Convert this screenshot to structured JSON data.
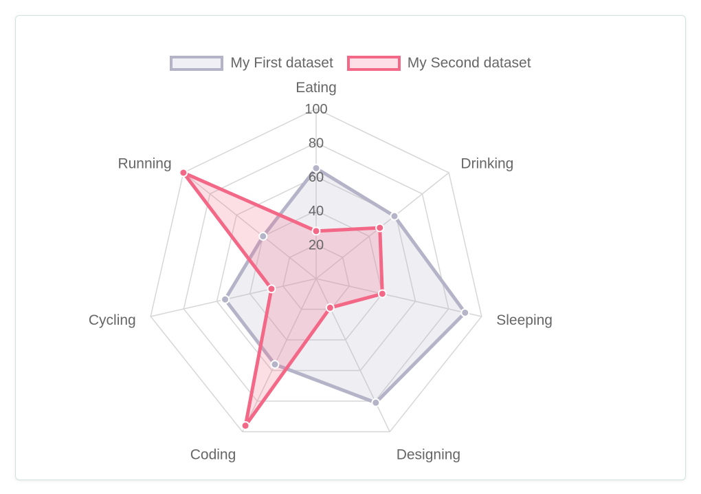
{
  "chart_data": {
    "type": "radar",
    "labels": [
      "Eating",
      "Drinking",
      "Sleeping",
      "Designing",
      "Coding",
      "Cycling",
      "Running"
    ],
    "r_range": [
      0,
      100
    ],
    "ticks": [
      20,
      40,
      60,
      80,
      100
    ],
    "series": [
      {
        "name": "My First dataset",
        "values": [
          65,
          59,
          90,
          81,
          56,
          55,
          40
        ],
        "stroke": "#b4b3c8",
        "fill": "rgba(180,179,200,0.22)"
      },
      {
        "name": "My Second dataset",
        "values": [
          28,
          48,
          40,
          19,
          96,
          27,
          100
        ],
        "stroke": "#f36887",
        "fill": "rgba(243,104,135,0.22)"
      }
    ],
    "legend_position": "top",
    "grid": true
  }
}
